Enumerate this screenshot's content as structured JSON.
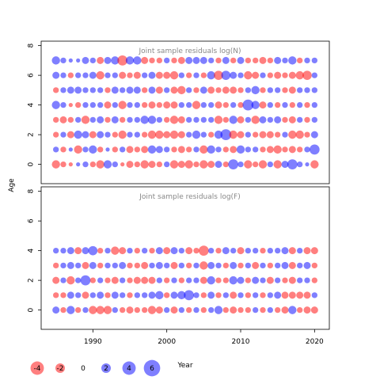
{
  "chart_data": {
    "type": "scatter",
    "description_axis": {
      "xlabel": "Year",
      "ylabel": "Age"
    },
    "x": {
      "start": 1985,
      "end": 2020,
      "ticks": [
        1990,
        2000,
        2010,
        2020
      ],
      "range": [
        1983,
        2022
      ]
    },
    "legend": {
      "placement": "bottom-left",
      "entries": [
        {
          "value": -4,
          "label": "-4"
        },
        {
          "value": -2,
          "label": "-2"
        },
        {
          "value": 0,
          "label": "0"
        },
        {
          "value": 2,
          "label": "2"
        },
        {
          "value": 4,
          "label": "4"
        },
        {
          "value": 6,
          "label": "6"
        }
      ]
    },
    "colors": {
      "positive": "#0000ff",
      "negative": "#ff0000",
      "opacity": 0.5
    },
    "panels": [
      {
        "title": "Joint sample residuals log(N)",
        "ages": [
          0,
          1,
          2,
          3,
          4,
          5,
          6,
          7
        ],
        "yticks": [
          0,
          2,
          4,
          6,
          8
        ],
        "yrange": [
          -1.3,
          8.3
        ],
        "residuals": [
          [
            -2,
            -1,
            -0.5,
            0.5,
            1,
            -1,
            -2,
            2,
            1,
            -0.5,
            -1.5,
            -1,
            -2,
            -1.5,
            -1,
            1,
            -2,
            -1.5,
            -2,
            -1,
            -2,
            -1.5,
            1.5,
            -1,
            3,
            1,
            -2,
            -1,
            -2,
            1,
            -2,
            1.5,
            3,
            1,
            0.5,
            -2
          ],
          [
            1,
            -1,
            0.5,
            -2,
            1,
            2,
            -1,
            0.5,
            -1,
            1,
            -1.5,
            -1,
            -1.5,
            2,
            1.5,
            1,
            -1,
            -1.5,
            -1,
            1,
            -2,
            2,
            1,
            -1,
            -1.5,
            2,
            1,
            1,
            -1,
            -1.5,
            -2,
            -1,
            -1.5,
            -1,
            1,
            3
          ],
          [
            -1,
            1,
            -1.5,
            2,
            1.5,
            -1.5,
            1.5,
            1,
            -1,
            -2,
            1,
            1,
            -1,
            -2,
            -2,
            -1.5,
            -2,
            -1.5,
            1,
            2,
            1,
            -1,
            2,
            3.5,
            -2,
            -1.5,
            1,
            -1,
            -1.5,
            -1.5,
            -1,
            1,
            -2,
            -2,
            -1,
            1.5
          ],
          [
            -1,
            -1.5,
            -1,
            1,
            -2,
            1,
            1.5,
            -1,
            1.5,
            -1,
            1,
            1,
            2,
            2,
            1,
            -1,
            -2,
            -1.5,
            1,
            1,
            1,
            1,
            -2,
            -1,
            2,
            -1.5,
            1,
            -2,
            1.5,
            1,
            1.5,
            -1,
            -1.5,
            1,
            -1,
            1
          ],
          [
            2,
            1,
            -0.5,
            -1,
            1,
            1,
            1,
            -1.5,
            1,
            -2,
            1,
            1,
            -1,
            -1.5,
            -1,
            -1.5,
            -1.5,
            1,
            1,
            -2,
            1,
            1,
            -1.5,
            -1,
            1,
            -1,
            3.5,
            2,
            -1.5,
            1,
            -1,
            1,
            -1,
            1,
            -1,
            1
          ],
          [
            -1,
            1,
            1.5,
            1.5,
            1,
            1,
            1,
            -1,
            1.5,
            1,
            1.5,
            1.5,
            -1,
            1.5,
            -1.5,
            1,
            -1.5,
            -2,
            1,
            -1,
            1.5,
            -1.5,
            -1,
            -1.5,
            -1.5,
            -1,
            1,
            2,
            -1,
            1,
            1,
            -1,
            -1.5,
            1,
            1,
            1
          ],
          [
            1.5,
            1,
            -1,
            1,
            1,
            1.5,
            -2,
            1,
            1,
            -1.5,
            -1,
            -1.5,
            1,
            1.5,
            -1.5,
            -1.5,
            -2,
            1,
            -1,
            1,
            -1,
            2,
            -2.5,
            2.5,
            1.5,
            1,
            -2,
            -1.5,
            1,
            -1,
            -1.5,
            -1,
            -1.5,
            -2,
            -2.5,
            1
          ],
          [
            2,
            1,
            0.5,
            0.5,
            1.5,
            1,
            -1.5,
            1.5,
            2,
            -3,
            2,
            2,
            -1.5,
            -1,
            -1,
            1,
            -1,
            -1.5,
            1.5,
            1.5,
            1.5,
            1,
            -1,
            1.5,
            -1,
            1.5,
            -1,
            -1,
            -1.5,
            -1,
            1.5,
            1,
            2,
            -1,
            1,
            1
          ]
        ]
      },
      {
        "title": "Joint sample residuals log(F)",
        "ages": [
          0,
          1,
          2,
          3,
          4
        ],
        "yticks": [
          0,
          2,
          4,
          6,
          8
        ],
        "yrange": [
          -1.3,
          8.3
        ],
        "residuals": [
          [
            1.5,
            -1,
            2,
            -1,
            1,
            -2,
            -2,
            -2,
            1,
            -1,
            -1.5,
            -1,
            -1,
            -2,
            -1.5,
            1,
            -1.5,
            1,
            -1,
            1,
            -1,
            1,
            2,
            -1,
            -1.5,
            -1,
            -1,
            1,
            -1,
            1,
            -1,
            -1.5,
            2,
            -1,
            -1.5,
            -1.5
          ],
          [
            -1,
            -1,
            1.5,
            1,
            -1.5,
            1,
            1.5,
            -1,
            1.5,
            1,
            -1,
            1,
            1,
            1.5,
            2,
            -1,
            1.5,
            2,
            3,
            1,
            -1,
            1.5,
            -1,
            1,
            -1.5,
            1,
            -1,
            1,
            -1,
            1,
            1.5,
            -1.5,
            -1.5,
            -1.5,
            -1.5,
            1
          ],
          [
            -1.5,
            1,
            -2,
            1,
            3,
            -1,
            1,
            -1,
            -1.5,
            1,
            -1,
            -1.5,
            -1.5,
            -1.5,
            1,
            -1,
            1,
            -1,
            1,
            1,
            -1.5,
            2,
            -1,
            -1,
            2,
            1.5,
            -1,
            1.5,
            1,
            -1.5,
            1,
            -1,
            -1.5,
            1,
            1,
            -1
          ],
          [
            -1,
            1,
            1.5,
            1,
            -1.5,
            1.5,
            -1,
            1,
            1,
            1.5,
            -1,
            -1,
            -1.5,
            1,
            1.5,
            1,
            -1.5,
            1,
            -1,
            1,
            -2,
            1.5,
            1,
            -1,
            1.5,
            -1,
            1,
            -1.5,
            1,
            -1,
            1,
            1.5,
            -1.5,
            1,
            1.5,
            -1
          ],
          [
            1,
            1,
            1.5,
            -1.5,
            1.5,
            2.5,
            -1,
            1,
            -2,
            -1.5,
            1,
            -1,
            1,
            -1,
            1.5,
            -1.5,
            1.5,
            1,
            -1.5,
            -1,
            -3,
            1,
            -1,
            1.5,
            1,
            -1.5,
            1,
            1,
            -1,
            1,
            1,
            1.5,
            -1.5,
            1,
            -1.5,
            -1.5
          ]
        ]
      }
    ]
  }
}
